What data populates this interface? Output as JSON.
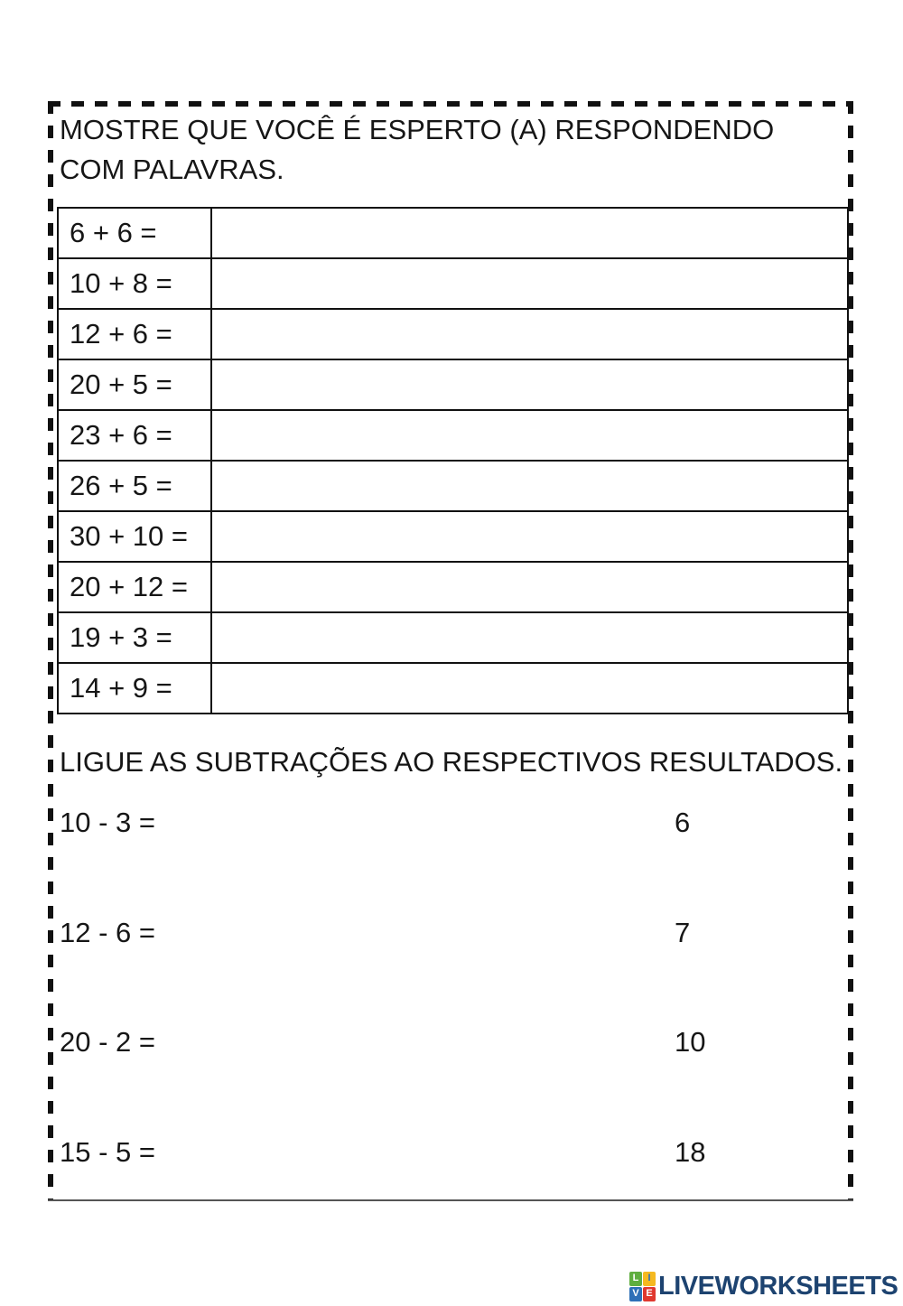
{
  "page": {
    "background_color": "#ffffff",
    "border_color": "#111111",
    "text_color": "#161616"
  },
  "addition_section": {
    "title": "MOSTRE QUE VOCÊ É ESPERTO (A) RESPONDENDO COM PALAVRAS.",
    "rows": [
      {
        "expression": "6 + 6 =",
        "answer": ""
      },
      {
        "expression": "10 + 8 =",
        "answer": ""
      },
      {
        "expression": "12 + 6 =",
        "answer": ""
      },
      {
        "expression": "20 + 5 =",
        "answer": ""
      },
      {
        "expression": "23 + 6 =",
        "answer": ""
      },
      {
        "expression": "26 + 5 =",
        "answer": ""
      },
      {
        "expression": "30 + 10 =",
        "answer": ""
      },
      {
        "expression": "20 + 12 =",
        "answer": ""
      },
      {
        "expression": "19 + 3 =",
        "answer": ""
      },
      {
        "expression": "14 + 9 =",
        "answer": ""
      }
    ]
  },
  "matching_section": {
    "title": "LIGUE AS SUBTRAÇÕES AO RESPECTIVOS RESULTADOS.",
    "pairs": [
      {
        "expression": "10 - 3 =",
        "result": "6"
      },
      {
        "expression": "12 - 6 =",
        "result": "7"
      },
      {
        "expression": "20 - 2 =",
        "result": "10"
      },
      {
        "expression": "15 - 5 =",
        "result": "18"
      }
    ]
  },
  "footer": {
    "brand": "LIVEWORKSHEETS",
    "brand_color": "#1d4370",
    "logo_letters": [
      "L",
      "I",
      "V",
      "E"
    ],
    "logo_colors": [
      "#5fae3f",
      "#f5b920",
      "#2e6fb7",
      "#e0382f"
    ]
  }
}
